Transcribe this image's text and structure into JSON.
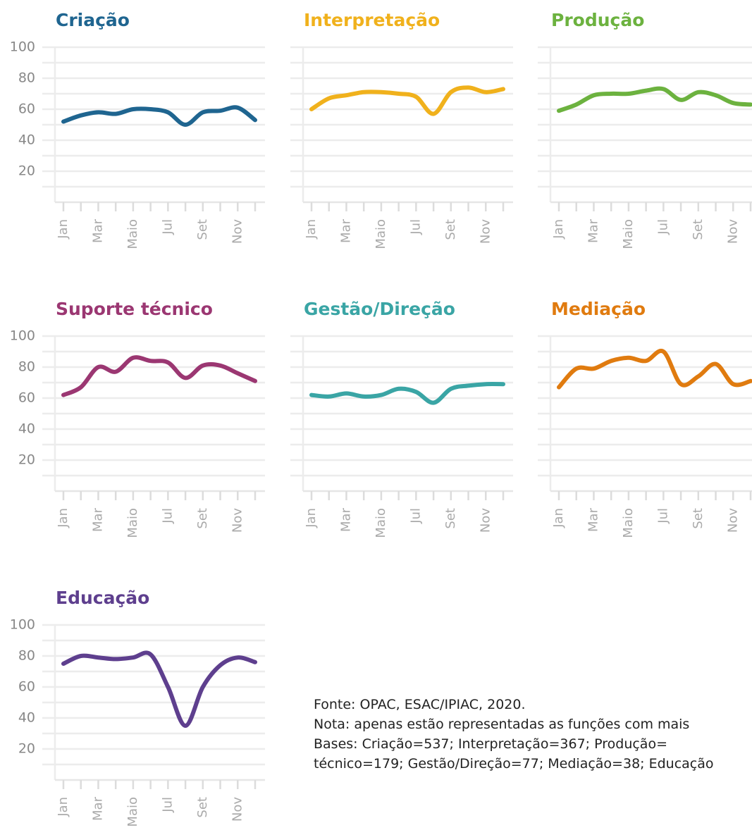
{
  "chart_data": [
    {
      "type": "line",
      "title": "Criação",
      "color": "#1f6590",
      "categories": [
        "Jan",
        null,
        "Mar",
        null,
        "Maio",
        null,
        "Jul",
        null,
        "Set",
        null,
        "Nov",
        null
      ],
      "values": [
        52,
        56,
        58,
        57,
        60,
        60,
        58,
        50,
        58,
        59,
        61,
        53
      ],
      "ylim": [
        0,
        100
      ],
      "yticks": [
        20,
        40,
        60,
        80,
        100
      ],
      "minor_grid": [
        10,
        30,
        50,
        70,
        90
      ],
      "grid": true
    },
    {
      "type": "line",
      "title": "Interpretação",
      "color": "#f0b11c",
      "categories": [
        "Jan",
        null,
        "Mar",
        null,
        "Maio",
        null,
        "Jul",
        null,
        "Set",
        null,
        "Nov",
        null
      ],
      "values": [
        60,
        67,
        69,
        71,
        71,
        70,
        68,
        57,
        71,
        74,
        71,
        73
      ],
      "ylim": [
        0,
        100
      ],
      "yticks": [
        20,
        40,
        60,
        80,
        100
      ],
      "minor_grid": [
        10,
        30,
        50,
        70,
        90
      ],
      "grid": true
    },
    {
      "type": "line",
      "title": "Produção",
      "color": "#6cb23f",
      "categories": [
        "Jan",
        null,
        "Mar",
        null,
        "Maio",
        null,
        "Jul",
        null,
        "Set",
        null,
        "Nov",
        null
      ],
      "values": [
        59,
        63,
        69,
        70,
        70,
        72,
        73,
        66,
        71,
        69,
        64,
        63
      ],
      "ylim": [
        0,
        100
      ],
      "yticks": [
        20,
        40,
        60,
        80,
        100
      ],
      "minor_grid": [
        10,
        30,
        50,
        70,
        90
      ],
      "grid": true
    },
    {
      "type": "line",
      "title": "Suporte técnico",
      "color": "#9b3772",
      "categories": [
        "Jan",
        null,
        "Mar",
        null,
        "Maio",
        null,
        "Jul",
        null,
        "Set",
        null,
        "Nov",
        null
      ],
      "values": [
        62,
        67,
        80,
        77,
        86,
        84,
        83,
        73,
        81,
        81,
        76,
        71
      ],
      "ylim": [
        0,
        100
      ],
      "yticks": [
        20,
        40,
        60,
        80,
        100
      ],
      "minor_grid": [
        10,
        30,
        50,
        70,
        90
      ],
      "grid": true
    },
    {
      "type": "line",
      "title": "Gestão/Direção",
      "color": "#3aa5a5",
      "categories": [
        "Jan",
        null,
        "Mar",
        null,
        "Maio",
        null,
        "Jul",
        null,
        "Set",
        null,
        "Nov",
        null
      ],
      "values": [
        62,
        61,
        63,
        61,
        62,
        66,
        64,
        57,
        66,
        68,
        69,
        69
      ],
      "ylim": [
        0,
        100
      ],
      "yticks": [
        20,
        40,
        60,
        80,
        100
      ],
      "minor_grid": [
        10,
        30,
        50,
        70,
        90
      ],
      "grid": true
    },
    {
      "type": "line",
      "title": "Mediação",
      "color": "#e07b0f",
      "categories": [
        "Jan",
        null,
        "Mar",
        null,
        "Maio",
        null,
        "Jul",
        null,
        "Set",
        null,
        "Nov",
        null
      ],
      "values": [
        67,
        79,
        79,
        84,
        86,
        84,
        90,
        69,
        74,
        82,
        69,
        71
      ],
      "ylim": [
        0,
        100
      ],
      "yticks": [
        20,
        40,
        60,
        80,
        100
      ],
      "minor_grid": [
        10,
        30,
        50,
        70,
        90
      ],
      "grid": true
    },
    {
      "type": "line",
      "title": "Educação",
      "color": "#5e3f8e",
      "categories": [
        "Jan",
        null,
        "Mar",
        null,
        "Maio",
        null,
        "Jul",
        null,
        "Set",
        null,
        "Nov",
        null
      ],
      "values": [
        75,
        80,
        79,
        78,
        79,
        81,
        60,
        35,
        60,
        74,
        79,
        76
      ],
      "ylim": [
        0,
        100
      ],
      "yticks": [
        20,
        40,
        60,
        80,
        100
      ],
      "minor_grid": [
        10,
        30,
        50,
        70,
        90
      ],
      "grid": true
    }
  ],
  "footnote": [
    "Fonte: OPAC, ESAC/IPIAC, 2020.",
    "Nota: apenas estão representadas as funções com mais",
    "Bases: Criação=537; Interpretação=367; Produção=",
    "técnico=179; Gestão/Direção=77; Mediação=38; Educação"
  ]
}
